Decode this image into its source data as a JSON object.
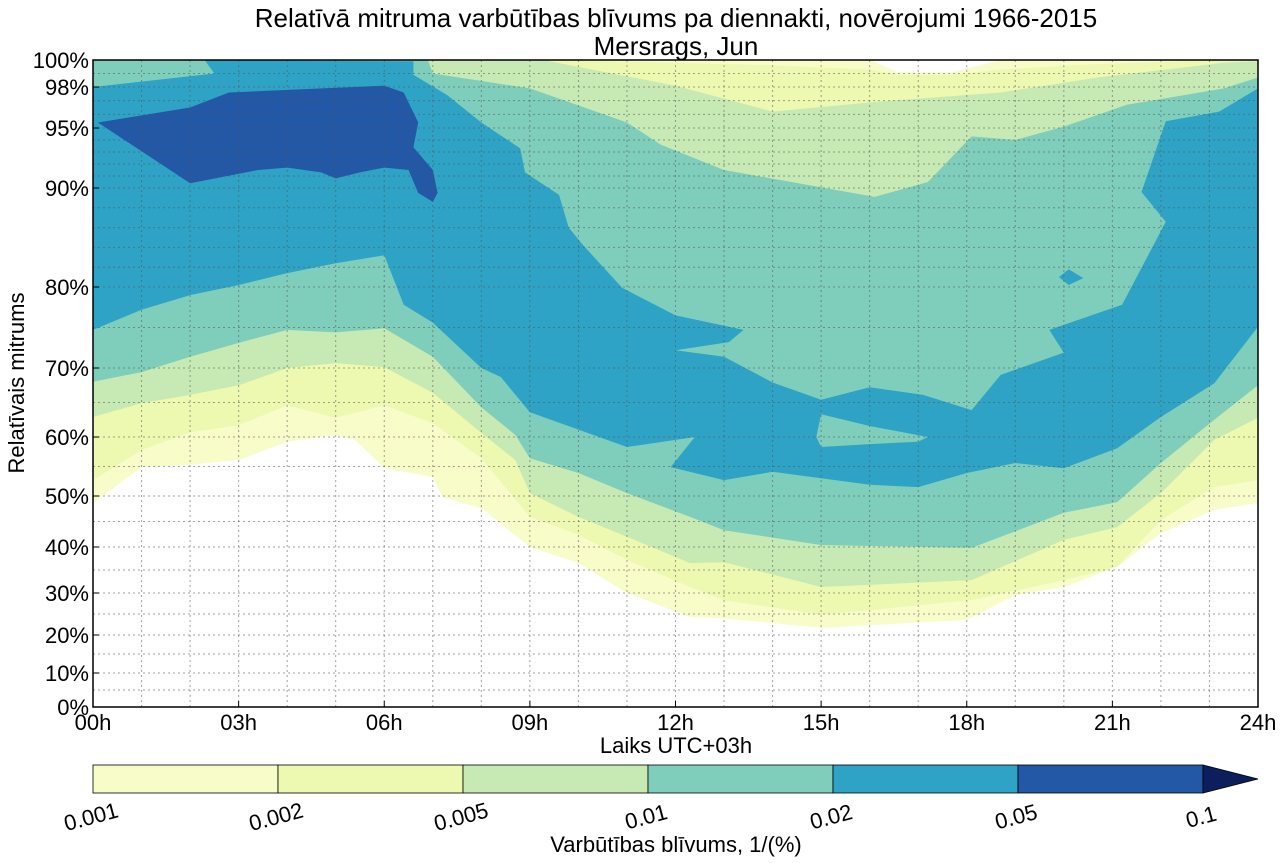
{
  "chart_data": {
    "type": "contour",
    "title": "Relatīvā mitruma varbūtības blīvums pa diennakti, novērojumi 1966-2015",
    "subtitle": "Mersrags, Jun",
    "xlabel": "Laiks UTC+03h",
    "ylabel": "Relatīvais mitrums",
    "xlim": [
      0,
      24
    ],
    "ylim": [
      0,
      100
    ],
    "grid": true,
    "x_ticks": [
      {
        "value": 0,
        "label": "00h"
      },
      {
        "value": 3,
        "label": "03h"
      },
      {
        "value": 6,
        "label": "06h"
      },
      {
        "value": 9,
        "label": "09h"
      },
      {
        "value": 12,
        "label": "12h"
      },
      {
        "value": 15,
        "label": "15h"
      },
      {
        "value": 18,
        "label": "18h"
      },
      {
        "value": 21,
        "label": "21h"
      },
      {
        "value": 24,
        "label": "24h"
      }
    ],
    "y_ticks": [
      {
        "value": 0,
        "label": "0%"
      },
      {
        "value": 10,
        "label": "10%"
      },
      {
        "value": 20,
        "label": "20%"
      },
      {
        "value": 30,
        "label": "30%"
      },
      {
        "value": 40,
        "label": "40%"
      },
      {
        "value": 50,
        "label": "50%"
      },
      {
        "value": 60,
        "label": "60%"
      },
      {
        "value": 70,
        "label": "70%"
      },
      {
        "value": 80,
        "label": "80%"
      },
      {
        "value": 90,
        "label": "90%"
      },
      {
        "value": 95,
        "label": "95%"
      },
      {
        "value": 98,
        "label": "98%"
      },
      {
        "value": 100,
        "label": "100%"
      }
    ],
    "colorbar": {
      "label": "Varbūtības blīvums, 1/(%)",
      "levels": [
        "0.001",
        "0.002",
        "0.005",
        "0.01",
        "0.02",
        "0.05",
        "0.1"
      ],
      "colors": [
        "#f8fcc9",
        "#edf8b1",
        "#c7e9b4",
        "#7fcdbb",
        "#2ea3c5",
        "#2358a6"
      ],
      "extend_color": "#0c1f5c",
      "extend": "max"
    },
    "contours": [
      {
        "level": "0.001",
        "color": "#f8fcc9",
        "points": [
          [
            0,
            48.6
          ],
          [
            1,
            54.9
          ],
          [
            2,
            55.3
          ],
          [
            3,
            56.1
          ],
          [
            4,
            59.2
          ],
          [
            5,
            60.3
          ],
          [
            5.4,
            59.5
          ],
          [
            6,
            54.7
          ],
          [
            7,
            53.2
          ],
          [
            7.2,
            49.8
          ],
          [
            8,
            47.6
          ],
          [
            9,
            40
          ],
          [
            10,
            36.5
          ],
          [
            11,
            30
          ],
          [
            12.3,
            24.3
          ],
          [
            13,
            24
          ],
          [
            15,
            21.7
          ],
          [
            18,
            23.6
          ],
          [
            19,
            29.5
          ],
          [
            20,
            31.3
          ],
          [
            21.1,
            35.7
          ],
          [
            22,
            42.7
          ],
          [
            23.1,
            47.3
          ],
          [
            24,
            48.6
          ],
          [
            24,
            100
          ],
          [
            18.7,
            100
          ],
          [
            17.7,
            99.1
          ],
          [
            16.6,
            99.1
          ],
          [
            16,
            100
          ],
          [
            0,
            100
          ]
        ]
      },
      {
        "level": "0.002",
        "color": "#edf8b1",
        "points": [
          [
            0,
            52.7
          ],
          [
            1,
            57.8
          ],
          [
            2,
            60.7
          ],
          [
            3,
            61.7
          ],
          [
            4,
            64.6
          ],
          [
            5,
            62.8
          ],
          [
            6,
            64.6
          ],
          [
            7,
            62
          ],
          [
            8,
            56.4
          ],
          [
            9,
            45.9
          ],
          [
            10,
            42.4
          ],
          [
            11,
            37.2
          ],
          [
            12.3,
            31.3
          ],
          [
            13,
            28.3
          ],
          [
            15,
            24.8
          ],
          [
            18.1,
            28.3
          ],
          [
            20,
            32.8
          ],
          [
            21.1,
            35.7
          ],
          [
            22,
            45.3
          ],
          [
            23.1,
            51.5
          ],
          [
            24,
            52.7
          ],
          [
            24,
            100
          ],
          [
            23.2,
            100
          ],
          [
            20.7,
            99.7
          ],
          [
            18.7,
            99.3
          ],
          [
            17.7,
            98.9
          ],
          [
            16.6,
            98.9
          ],
          [
            16,
            99.3
          ],
          [
            14,
            99.6
          ],
          [
            12,
            99.8
          ],
          [
            9.6,
            100
          ],
          [
            0,
            100
          ]
        ]
      },
      {
        "level": "0.005",
        "color": "#c7e9b4",
        "points": [
          [
            0,
            62.9
          ],
          [
            1,
            64.9
          ],
          [
            2,
            66.1
          ],
          [
            3,
            67.5
          ],
          [
            4,
            70
          ],
          [
            5,
            70.6
          ],
          [
            6,
            70.1
          ],
          [
            7,
            66.4
          ],
          [
            8,
            60.6
          ],
          [
            8.7,
            56.1
          ],
          [
            9,
            50.5
          ],
          [
            10,
            45.9
          ],
          [
            11,
            42
          ],
          [
            12.3,
            36.5
          ],
          [
            13,
            36.7
          ],
          [
            15,
            31.3
          ],
          [
            18.1,
            32.8
          ],
          [
            20,
            41.4
          ],
          [
            21.1,
            43.9
          ],
          [
            22,
            50.5
          ],
          [
            23.1,
            59.5
          ],
          [
            24,
            62.8
          ],
          [
            24,
            99.9
          ],
          [
            23.3,
            99.8
          ],
          [
            20.7,
            98.7
          ],
          [
            18.7,
            97.6
          ],
          [
            16.1,
            96.9
          ],
          [
            14,
            96.2
          ],
          [
            12,
            98.1
          ],
          [
            9.4,
            99.9
          ],
          [
            9.4,
            100
          ],
          [
            0,
            100
          ]
        ]
      },
      {
        "level": "0.01",
        "color": "#7fcdbb",
        "points": [
          [
            0,
            68
          ],
          [
            1,
            69.4
          ],
          [
            2,
            71.4
          ],
          [
            3,
            73.1
          ],
          [
            4,
            74.7
          ],
          [
            5,
            74.4
          ],
          [
            6,
            74.9
          ],
          [
            7,
            71.4
          ],
          [
            8,
            64.3
          ],
          [
            8.7,
            60.3
          ],
          [
            9,
            56.4
          ],
          [
            10,
            53.9
          ],
          [
            11,
            50.5
          ],
          [
            12.3,
            45.9
          ],
          [
            13,
            43.3
          ],
          [
            15,
            40.4
          ],
          [
            18.1,
            39.8
          ],
          [
            20,
            46.7
          ],
          [
            21.1,
            48.8
          ],
          [
            22,
            55.6
          ],
          [
            23.1,
            62.5
          ],
          [
            24,
            67.5
          ],
          [
            24,
            98.7
          ],
          [
            23.3,
            97.9
          ],
          [
            21.3,
            96.7
          ],
          [
            20,
            95.1
          ],
          [
            19,
            94
          ],
          [
            18.1,
            94.3
          ],
          [
            17.2,
            90.5
          ],
          [
            16.1,
            89.1
          ],
          [
            13,
            91.5
          ],
          [
            11.7,
            93.6
          ],
          [
            11,
            95.4
          ],
          [
            9,
            97.9
          ],
          [
            7,
            99
          ],
          [
            6.9,
            100
          ],
          [
            0,
            100
          ]
        ]
      },
      {
        "level": "0.02",
        "color": "#2ea3c5",
        "points": [
          [
            0,
            98
          ],
          [
            2.5,
            99
          ],
          [
            2.3,
            100
          ],
          [
            6.6,
            99.9
          ],
          [
            6.6,
            98.9
          ],
          [
            7.3,
            97.4
          ],
          [
            8,
            95.4
          ],
          [
            8.8,
            93.3
          ],
          [
            8.9,
            91.3
          ],
          [
            9.6,
            89.3
          ],
          [
            9.8,
            86
          ],
          [
            10.1,
            84.2
          ],
          [
            10.9,
            79.9
          ],
          [
            12,
            76.5
          ],
          [
            13.4,
            74.7
          ],
          [
            13.1,
            73.2
          ],
          [
            12,
            72.2
          ],
          [
            13,
            71.4
          ],
          [
            14,
            67.9
          ],
          [
            15,
            65.4
          ],
          [
            16,
            67.2
          ],
          [
            17.1,
            66.1
          ],
          [
            18.1,
            63.9
          ],
          [
            18.7,
            69
          ],
          [
            20,
            71.9
          ],
          [
            19.7,
            74.7
          ],
          [
            21.2,
            77.8
          ],
          [
            22.1,
            86.6
          ],
          [
            21.6,
            89.6
          ],
          [
            22.1,
            95.5
          ],
          [
            23.2,
            96.2
          ],
          [
            24,
            97.9
          ],
          [
            24,
            75.1
          ],
          [
            23.1,
            67.8
          ],
          [
            22,
            62.9
          ],
          [
            21.1,
            58.1
          ],
          [
            20,
            54.7
          ],
          [
            19,
            55.6
          ],
          [
            18,
            53.9
          ],
          [
            17,
            51.5
          ],
          [
            16,
            51.9
          ],
          [
            14,
            54.1
          ],
          [
            13,
            52.7
          ],
          [
            11.9,
            54.9
          ],
          [
            12.4,
            60
          ],
          [
            11,
            58.3
          ],
          [
            9,
            63.6
          ],
          [
            8.4,
            68.7
          ],
          [
            8,
            70
          ],
          [
            7,
            75.6
          ],
          [
            6.4,
            77.8
          ],
          [
            6,
            83.2
          ],
          [
            5,
            82.4
          ],
          [
            4,
            81.4
          ],
          [
            3,
            80.2
          ],
          [
            2,
            79
          ],
          [
            1,
            77.2
          ],
          [
            0,
            74.7
          ]
        ]
      },
      {
        "level": "0.02",
        "color": "#2ea3c5",
        "points": [
          [
            19.9,
            81
          ],
          [
            20.1,
            81.8
          ],
          [
            20.4,
            80.9
          ],
          [
            20.1,
            80.2
          ]
        ]
      },
      {
        "level": "0.01",
        "color": "#7fcdbb",
        "points": [
          [
            14.9,
            60
          ],
          [
            15,
            63.3
          ],
          [
            16,
            61.6
          ],
          [
            17.2,
            60
          ],
          [
            17,
            59.2
          ],
          [
            16,
            58.8
          ],
          [
            15,
            58.3
          ]
        ]
      },
      {
        "level": "0.05",
        "color": "#2358a6",
        "points": [
          [
            0.1,
            95.4
          ],
          [
            2,
            96.5
          ],
          [
            2.8,
            97.6
          ],
          [
            6,
            98.1
          ],
          [
            6.4,
            97.6
          ],
          [
            6.7,
            95.4
          ],
          [
            6.6,
            93.4
          ],
          [
            7,
            91.5
          ],
          [
            7.1,
            89.5
          ],
          [
            7,
            88.6
          ],
          [
            6.7,
            89.5
          ],
          [
            6.5,
            91.5
          ],
          [
            6,
            91.7
          ],
          [
            5.5,
            91.3
          ],
          [
            5,
            90.8
          ],
          [
            4.7,
            91.3
          ],
          [
            4,
            91.7
          ],
          [
            3.4,
            91.5
          ],
          [
            2,
            90.4
          ]
        ]
      }
    ]
  }
}
